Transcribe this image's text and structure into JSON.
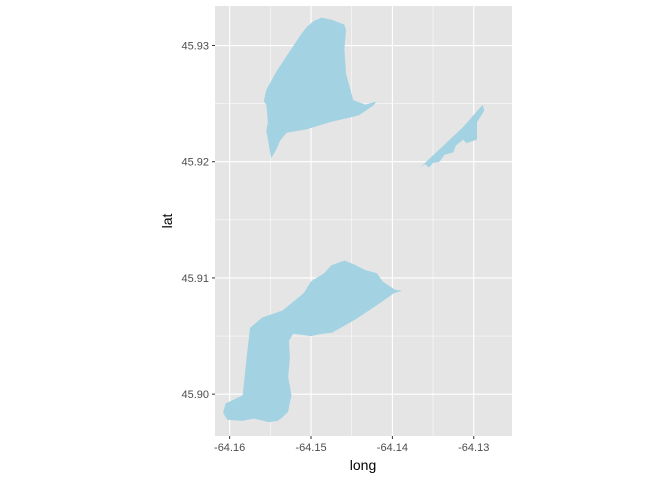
{
  "chart_data": {
    "type": "map",
    "xlabel": "long",
    "ylabel": "lat",
    "xlim": [
      -64.1618,
      -64.1253
    ],
    "ylim": [
      45.8964,
      45.9334
    ],
    "x_ticks": [
      {
        "value": -64.16,
        "label": "-64.16"
      },
      {
        "value": -64.15,
        "label": "-64.15"
      },
      {
        "value": -64.14,
        "label": "-64.14"
      },
      {
        "value": -64.13,
        "label": "-64.13"
      }
    ],
    "y_ticks": [
      {
        "value": 45.9,
        "label": "45.90"
      },
      {
        "value": 45.91,
        "label": "45.91"
      },
      {
        "value": 45.92,
        "label": "45.92"
      },
      {
        "value": 45.93,
        "label": "45.93"
      }
    ],
    "grid": true,
    "panel_background": "#e5e5e5",
    "grid_color": "#ffffff",
    "fill_color": "#a3d3e3",
    "polygons": [
      {
        "id": "north-west-lake",
        "points": [
          [
            -64.1549,
            45.9203
          ],
          [
            -64.1543,
            45.921
          ],
          [
            -64.1538,
            45.9218
          ],
          [
            -64.153,
            45.9225
          ],
          [
            -64.1505,
            45.9228
          ],
          [
            -64.1477,
            45.9234
          ],
          [
            -64.1441,
            45.924
          ],
          [
            -64.1424,
            45.9248
          ],
          [
            -64.1419,
            45.9252
          ],
          [
            -64.1433,
            45.9249
          ],
          [
            -64.1448,
            45.9253
          ],
          [
            -64.1457,
            45.9276
          ],
          [
            -64.1459,
            45.9297
          ],
          [
            -64.1457,
            45.9313
          ],
          [
            -64.1459,
            45.9318
          ],
          [
            -64.1474,
            45.9322
          ],
          [
            -64.1487,
            45.9324
          ],
          [
            -64.1497,
            45.9321
          ],
          [
            -64.1505,
            45.9316
          ],
          [
            -64.1512,
            45.931
          ],
          [
            -64.1529,
            45.9292
          ],
          [
            -64.1543,
            45.9277
          ],
          [
            -64.1555,
            45.9262
          ],
          [
            -64.1558,
            45.9252
          ],
          [
            -64.1555,
            45.9249
          ],
          [
            -64.1553,
            45.9234
          ],
          [
            -64.1555,
            45.9227
          ],
          [
            -64.1552,
            45.9215
          ]
        ]
      },
      {
        "id": "north-east-lake",
        "points": [
          [
            -64.1367,
            45.9194
          ],
          [
            -64.1357,
            45.9201
          ],
          [
            -64.1337,
            45.9214
          ],
          [
            -64.1313,
            45.923
          ],
          [
            -64.1289,
            45.9249
          ],
          [
            -64.1287,
            45.9244
          ],
          [
            -64.1296,
            45.9234
          ],
          [
            -64.1296,
            45.9219
          ],
          [
            -64.1309,
            45.9216
          ],
          [
            -64.1313,
            45.9219
          ],
          [
            -64.1322,
            45.9214
          ],
          [
            -64.1325,
            45.9208
          ],
          [
            -64.1336,
            45.9206
          ],
          [
            -64.1342,
            45.92
          ],
          [
            -64.135,
            45.9199
          ],
          [
            -64.1355,
            45.9195
          ],
          [
            -64.136,
            45.9198
          ]
        ]
      },
      {
        "id": "south-lake",
        "points": [
          [
            -64.1603,
            45.8978
          ],
          [
            -64.1608,
            45.8984
          ],
          [
            -64.1605,
            45.8992
          ],
          [
            -64.1584,
            45.8999
          ],
          [
            -64.158,
            45.9026
          ],
          [
            -64.1575,
            45.9057
          ],
          [
            -64.156,
            45.9066
          ],
          [
            -64.1535,
            45.9072
          ],
          [
            -64.1509,
            45.9087
          ],
          [
            -64.15,
            45.9097
          ],
          [
            -64.1484,
            45.9104
          ],
          [
            -64.1475,
            45.9111
          ],
          [
            -64.1459,
            45.9115
          ],
          [
            -64.1448,
            45.9112
          ],
          [
            -64.1434,
            45.9107
          ],
          [
            -64.1419,
            45.9104
          ],
          [
            -64.1412,
            45.9097
          ],
          [
            -64.1397,
            45.909
          ],
          [
            -64.1388,
            45.9089
          ],
          [
            -64.1398,
            45.9087
          ],
          [
            -64.142,
            45.9076
          ],
          [
            -64.1446,
            45.9064
          ],
          [
            -64.1474,
            45.9053
          ],
          [
            -64.1486,
            45.9052
          ],
          [
            -64.15,
            45.905
          ],
          [
            -64.1522,
            45.9052
          ],
          [
            -64.1527,
            45.9046
          ],
          [
            -64.1526,
            45.9031
          ],
          [
            -64.1528,
            45.9015
          ],
          [
            -64.1524,
            45.8999
          ],
          [
            -64.1526,
            45.8993
          ],
          [
            -64.1528,
            45.8985
          ],
          [
            -64.1535,
            45.898
          ],
          [
            -64.1541,
            45.8977
          ],
          [
            -64.1552,
            45.8976
          ],
          [
            -64.157,
            45.8979
          ],
          [
            -64.1585,
            45.8977
          ]
        ]
      }
    ]
  }
}
